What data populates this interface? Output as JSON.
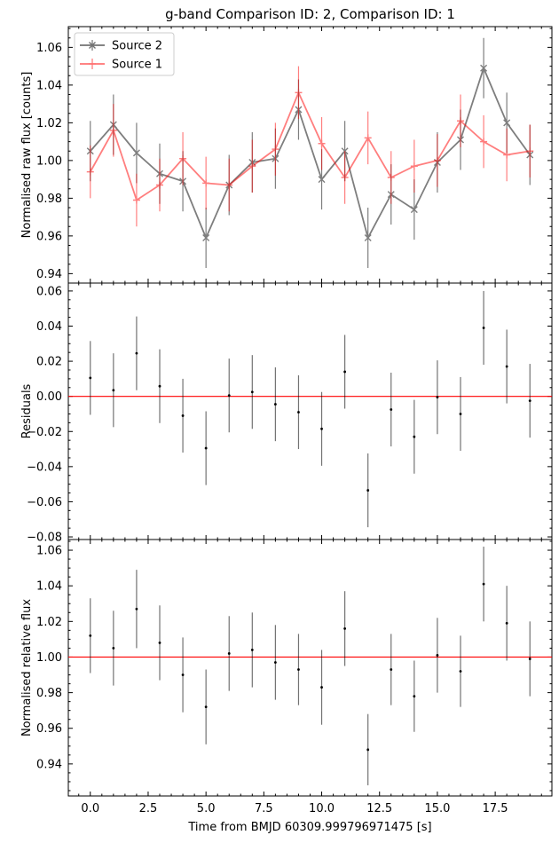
{
  "chart_data": [
    {
      "type": "line",
      "title": "g-band Comparison ID: 2, Comparison ID: 1",
      "ylabel": "Normalised raw flux [counts]",
      "xlabel": "",
      "xlim": [
        -0.95,
        19.95
      ],
      "ylim": [
        0.935,
        1.071
      ],
      "yticks": [
        "0.94",
        "0.96",
        "0.98",
        "1.00",
        "1.02",
        "1.04",
        "1.06"
      ],
      "x": [
        0,
        1,
        2,
        3,
        4,
        5,
        6,
        7,
        8,
        9,
        10,
        11,
        12,
        13,
        14,
        15,
        16,
        17,
        18,
        19
      ],
      "legend": "top-left",
      "series": [
        {
          "name": "Source 2",
          "color": "#000000",
          "marker": "x",
          "values": [
            1.005,
            1.019,
            1.004,
            0.993,
            0.989,
            0.959,
            0.987,
            0.999,
            1.001,
            1.027,
            0.99,
            1.005,
            0.959,
            0.982,
            0.974,
            0.999,
            1.011,
            1.049,
            1.02,
            1.003
          ],
          "errors": [
            0.016,
            0.016,
            0.016,
            0.016,
            0.016,
            0.016,
            0.016,
            0.016,
            0.016,
            0.016,
            0.016,
            0.016,
            0.016,
            0.016,
            0.016,
            0.016,
            0.016,
            0.016,
            0.016,
            0.016
          ]
        },
        {
          "name": "Source 1",
          "color": "#ff0000",
          "marker": "+",
          "values": [
            0.994,
            1.016,
            0.979,
            0.987,
            1.001,
            0.988,
            0.987,
            0.997,
            1.006,
            1.036,
            1.009,
            0.991,
            1.012,
            0.991,
            0.997,
            1.0,
            1.021,
            1.01,
            1.003,
            1.005
          ],
          "errors": [
            0.014,
            0.014,
            0.014,
            0.014,
            0.014,
            0.014,
            0.014,
            0.014,
            0.014,
            0.014,
            0.014,
            0.014,
            0.014,
            0.014,
            0.014,
            0.014,
            0.014,
            0.014,
            0.014,
            0.014
          ]
        }
      ]
    },
    {
      "type": "scatter",
      "title": "",
      "ylabel": "Residuals",
      "xlabel": "",
      "xlim": [
        -0.95,
        19.95
      ],
      "ylim": [
        -0.0815,
        0.0645
      ],
      "yticks": [
        "−0.08",
        "−0.06",
        "−0.04",
        "−0.02",
        "0.00",
        "0.02",
        "0.04",
        "0.06"
      ],
      "reference_line": 0.0,
      "x": [
        0,
        1,
        2,
        3,
        4,
        5,
        6,
        7,
        8,
        9,
        10,
        11,
        12,
        13,
        14,
        15,
        16,
        17,
        18,
        19
      ],
      "series": [
        {
          "values": [
            0.0105,
            0.0035,
            0.0245,
            0.0058,
            -0.011,
            -0.0295,
            0.0005,
            0.0025,
            -0.0045,
            -0.009,
            -0.0185,
            0.014,
            -0.0535,
            -0.0075,
            -0.023,
            -0.0005,
            -0.01,
            0.039,
            0.017,
            -0.0025
          ],
          "errors": [
            0.021,
            0.021,
            0.021,
            0.021,
            0.021,
            0.021,
            0.021,
            0.021,
            0.021,
            0.021,
            0.021,
            0.021,
            0.021,
            0.021,
            0.021,
            0.021,
            0.021,
            0.021,
            0.021,
            0.021
          ]
        }
      ]
    },
    {
      "type": "scatter",
      "title": "",
      "ylabel": "Normalised relative flux",
      "xlabel": "Time from BMJD 60309.999796971475 [s]",
      "xlim": [
        -0.95,
        19.95
      ],
      "ylim": [
        0.922,
        1.066
      ],
      "yticks": [
        "0.94",
        "0.96",
        "0.98",
        "1.00",
        "1.02",
        "1.04",
        "1.06"
      ],
      "xticks": [
        "0.0",
        "2.5",
        "5.0",
        "7.5",
        "10.0",
        "12.5",
        "15.0",
        "17.5"
      ],
      "reference_line": 1.0,
      "x": [
        0,
        1,
        2,
        3,
        4,
        5,
        6,
        7,
        8,
        9,
        10,
        11,
        12,
        13,
        14,
        15,
        16,
        17,
        18,
        19
      ],
      "series": [
        {
          "values": [
            1.012,
            1.005,
            1.027,
            1.008,
            0.99,
            0.972,
            1.002,
            1.004,
            0.997,
            0.993,
            0.983,
            1.016,
            0.948,
            0.993,
            0.978,
            1.001,
            0.992,
            1.041,
            1.019,
            0.999
          ],
          "errors": [
            0.021,
            0.021,
            0.022,
            0.021,
            0.021,
            0.021,
            0.021,
            0.021,
            0.021,
            0.02,
            0.021,
            0.021,
            0.02,
            0.02,
            0.02,
            0.021,
            0.02,
            0.021,
            0.021,
            0.021
          ]
        }
      ]
    }
  ]
}
